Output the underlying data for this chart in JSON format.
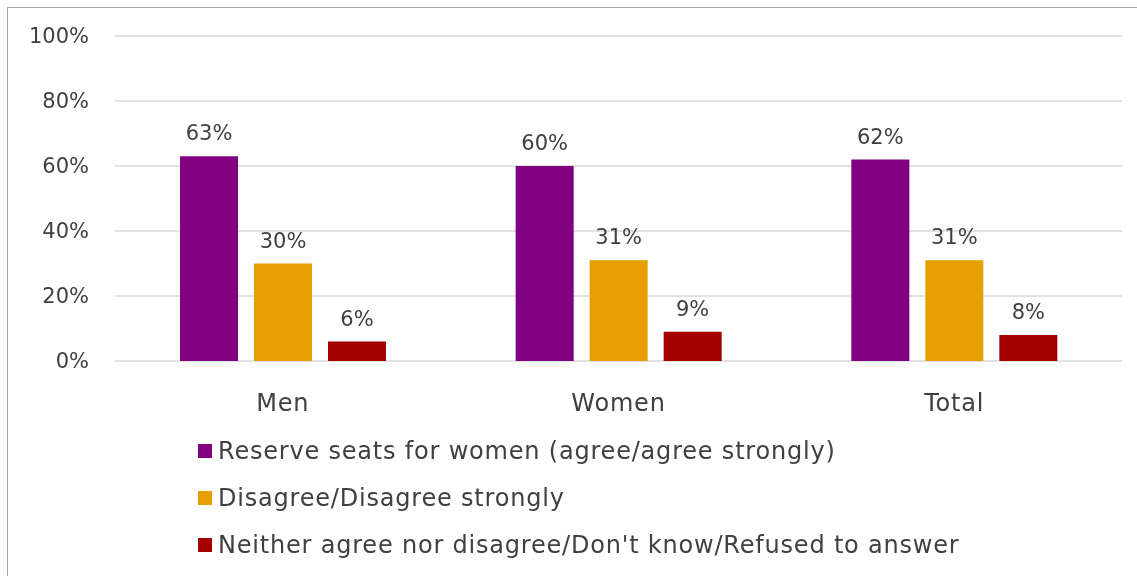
{
  "chart_data": {
    "type": "bar",
    "categories": [
      "Men",
      "Women",
      "Total"
    ],
    "series": [
      {
        "name": "Reserve seats for women (agree/agree strongly)",
        "color": "#800080",
        "values": [
          63,
          60,
          62
        ],
        "value_labels": [
          "63%",
          "60%",
          "62%"
        ]
      },
      {
        "name": "Disagree/Disagree strongly",
        "color": "#e69f00",
        "values": [
          30,
          31,
          31
        ],
        "value_labels": [
          "30%",
          "31%",
          "31%"
        ]
      },
      {
        "name": "Neither agree nor disagree/Don't know/Refused to answer",
        "color": "#a50000",
        "values": [
          6,
          9,
          8
        ],
        "value_labels": [
          "6%",
          "9%",
          "8%"
        ]
      }
    ],
    "ylim": [
      0,
      100
    ],
    "yticks": [
      {
        "value": 0,
        "label": "0%"
      },
      {
        "value": 20,
        "label": "20%"
      },
      {
        "value": 40,
        "label": "40%"
      },
      {
        "value": 60,
        "label": "60%"
      },
      {
        "value": 80,
        "label": "80%"
      },
      {
        "value": 100,
        "label": "100%"
      }
    ],
    "grid": "y",
    "legend": "bottom"
  }
}
